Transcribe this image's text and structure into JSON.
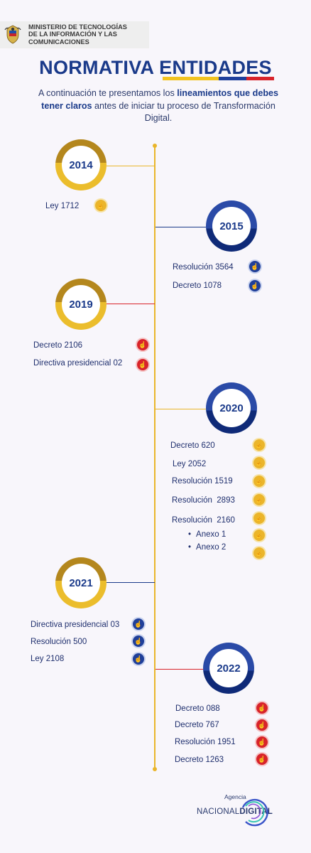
{
  "header": {
    "ministry_line1": "MINISTERIO DE TECNOLOGÍAS",
    "ministry_line2": "DE LA INFORMACIÓN Y LAS",
    "ministry_line3": "COMUNICACIONES",
    "title_part1": "NORMATIVA",
    "title_part2": "ENTIDADES",
    "intro_part1": "A continuación te presentamos los",
    "intro_bold": "lineamientos que debes tener claros",
    "intro_part2": "antes de iniciar tu proceso de Transformación Digital."
  },
  "timeline": {
    "y2014": {
      "year": "2014",
      "items": [
        "Ley 1712"
      ]
    },
    "y2015": {
      "year": "2015",
      "items": [
        "Resolución 3564",
        "Decreto 1078"
      ]
    },
    "y2019": {
      "year": "2019",
      "items": [
        "Decreto 2106",
        "Directiva presidencial 02"
      ]
    },
    "y2020": {
      "year": "2020",
      "items": [
        "Decreto 620",
        "Ley 2052",
        "Resolución 1519",
        "Resolución  2893",
        "Resolución  2160",
        "Anexo 1",
        "Anexo 2"
      ]
    },
    "y2021": {
      "year": "2021",
      "items": [
        "Directiva presidencial 03",
        "Resolución 500",
        "Ley 2108"
      ]
    },
    "y2022": {
      "year": "2022",
      "items": [
        "Decreto 088",
        "Decreto 767",
        "Resolución 1951",
        "Decreto 1263"
      ]
    }
  },
  "footer": {
    "logo_small": "Agencia",
    "logo_main_light": "NACIONAL",
    "logo_main_bold": "DIGITAL"
  },
  "colors": {
    "gold": "#ebb52b",
    "navy": "#1a3a8a",
    "red": "#d8232a",
    "spine": "#e9b52a"
  },
  "icons": {
    "link": "hand-pointer-icon",
    "crest": "colombia-crest-icon"
  }
}
